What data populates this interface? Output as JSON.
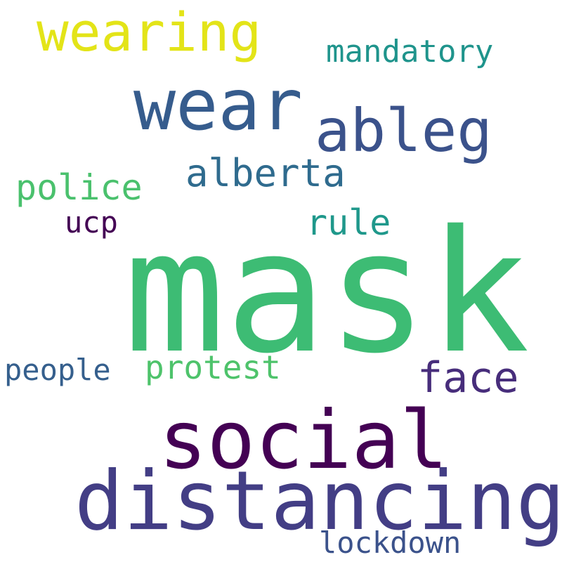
{
  "word_cloud": {
    "background": "#ffffff",
    "words": {
      "mask": {
        "text": "mask",
        "color": "#3dbc74"
      },
      "distancing": {
        "text": "distancing",
        "color": "#433e85"
      },
      "social": {
        "text": "social",
        "color": "#440154"
      },
      "wear": {
        "text": "wear",
        "color": "#365c8d"
      },
      "ableg": {
        "text": "ableg",
        "color": "#3b528b"
      },
      "wearing": {
        "text": "wearing",
        "color": "#e3e418"
      },
      "face": {
        "text": "face",
        "color": "#472d7b"
      },
      "alberta": {
        "text": "alberta",
        "color": "#2f6b8e"
      },
      "police": {
        "text": "police",
        "color": "#4ac16d"
      },
      "protest": {
        "text": "protest",
        "color": "#4ec36b"
      },
      "rule": {
        "text": "rule",
        "color": "#1f988b"
      },
      "mandatory": {
        "text": "mandatory",
        "color": "#1f948c"
      },
      "lockdown": {
        "text": "lockdown",
        "color": "#3b528b"
      },
      "people": {
        "text": "people",
        "color": "#355f8d"
      },
      "ucp": {
        "text": "ucp",
        "color": "#440154"
      }
    }
  }
}
